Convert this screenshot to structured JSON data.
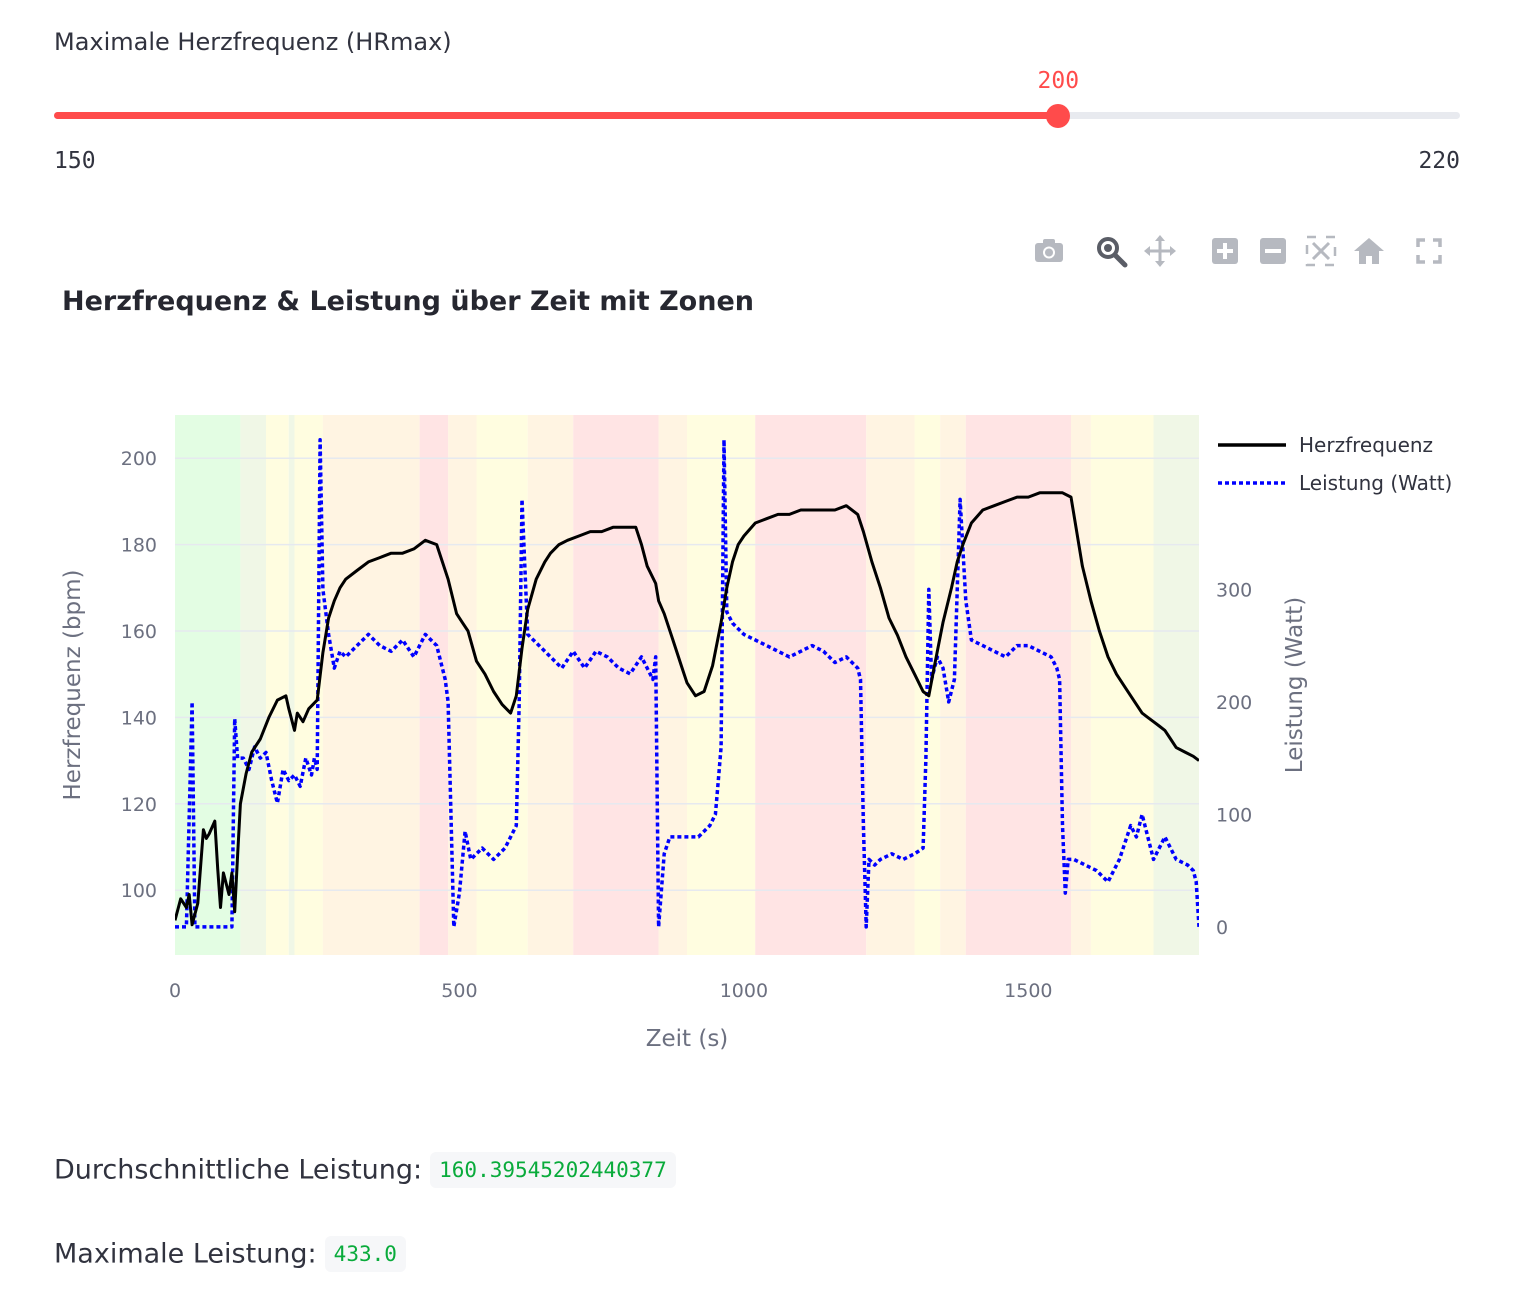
{
  "slider": {
    "label": "Maximale Herzfrequenz (HRmax)",
    "value": 200,
    "min": 150,
    "max": 220,
    "value_label": "200",
    "min_label": "150",
    "max_label": "220",
    "accent_color": "#ff4b4b"
  },
  "modebar": {
    "icons": [
      "camera-icon",
      "zoom-icon",
      "pan-icon",
      "zoom-in-icon",
      "zoom-out-icon",
      "autoscale-icon",
      "reset-axes-icon",
      "fullscreen-icon"
    ]
  },
  "metrics": {
    "avg_label": "Durchschnittliche Leistung:",
    "avg_value": "160.39545202440377",
    "max_label": "Maximale Leistung:",
    "max_value": "433.0"
  },
  "chart_data": {
    "type": "line",
    "title": "Herzfrequenz & Leistung über Zeit mit Zonen",
    "xlabel": "Zeit (s)",
    "ylabel": "Herzfrequenz (bpm)",
    "y2label": "Leistung (Watt)",
    "xlim": [
      0,
      1800
    ],
    "ylim": [
      85,
      210
    ],
    "y2lim": [
      -25,
      455
    ],
    "xticks": [
      0,
      500,
      1000,
      1500
    ],
    "yticks": [
      100,
      120,
      140,
      160,
      180,
      200
    ],
    "y2ticks": [
      0,
      100,
      200,
      300
    ],
    "grid": true,
    "legend_position": "top-right",
    "zone_colors": {
      "z1": "#e3fde3",
      "z2": "#fffde0",
      "z3": "#fff4e2",
      "z4": "#ffe4e4",
      "z5": "#f0f7e6"
    },
    "zones": [
      [
        0,
        115,
        "z1"
      ],
      [
        115,
        160,
        "z5"
      ],
      [
        160,
        200,
        "z2"
      ],
      [
        200,
        210,
        "z5"
      ],
      [
        210,
        260,
        "z2"
      ],
      [
        260,
        430,
        "z3"
      ],
      [
        430,
        480,
        "z4"
      ],
      [
        480,
        530,
        "z3"
      ],
      [
        530,
        620,
        "z2"
      ],
      [
        620,
        700,
        "z3"
      ],
      [
        700,
        850,
        "z4"
      ],
      [
        850,
        900,
        "z3"
      ],
      [
        900,
        1020,
        "z2"
      ],
      [
        1020,
        1215,
        "z4"
      ],
      [
        1215,
        1300,
        "z3"
      ],
      [
        1300,
        1345,
        "z2"
      ],
      [
        1345,
        1390,
        "z3"
      ],
      [
        1390,
        1575,
        "z4"
      ],
      [
        1575,
        1610,
        "z3"
      ],
      [
        1610,
        1720,
        "z2"
      ],
      [
        1720,
        1800,
        "z5"
      ]
    ],
    "series": [
      {
        "name": "Herzfrequenz",
        "axis": "y",
        "color": "#000000",
        "dash": "solid",
        "x": [
          0,
          10,
          20,
          25,
          30,
          40,
          50,
          55,
          60,
          70,
          75,
          80,
          85,
          95,
          100,
          105,
          110,
          115,
          125,
          135,
          150,
          165,
          180,
          195,
          200,
          210,
          215,
          225,
          235,
          250,
          260,
          270,
          280,
          290,
          300,
          320,
          340,
          360,
          380,
          400,
          420,
          440,
          460,
          480,
          495,
          505,
          515,
          530,
          545,
          560,
          575,
          590,
          600,
          610,
          620,
          635,
          650,
          660,
          675,
          690,
          710,
          730,
          750,
          770,
          790,
          810,
          820,
          830,
          845,
          850,
          860,
          875,
          890,
          900,
          915,
          930,
          945,
          960,
          970,
          980,
          990,
          1000,
          1020,
          1040,
          1060,
          1080,
          1100,
          1120,
          1140,
          1160,
          1180,
          1200,
          1210,
          1225,
          1240,
          1255,
          1270,
          1285,
          1300,
          1315,
          1325,
          1335,
          1350,
          1365,
          1375,
          1385,
          1400,
          1420,
          1440,
          1460,
          1480,
          1500,
          1520,
          1540,
          1560,
          1575,
          1585,
          1595,
          1610,
          1625,
          1640,
          1655,
          1670,
          1690,
          1700,
          1710,
          1720,
          1730,
          1740,
          1750,
          1760,
          1775,
          1790,
          1800
        ],
        "y": [
          93,
          98,
          96,
          99,
          92,
          97,
          114,
          112,
          113,
          116,
          105,
          96,
          104,
          99,
          104,
          95,
          108,
          120,
          127,
          132,
          135,
          140,
          144,
          145,
          142,
          137,
          141,
          139,
          142,
          144,
          155,
          163,
          167,
          170,
          172,
          174,
          176,
          177,
          178,
          178,
          179,
          181,
          180,
          172,
          164,
          162,
          160,
          153,
          150,
          146,
          143,
          141,
          145,
          156,
          165,
          172,
          176,
          178,
          180,
          181,
          182,
          183,
          183,
          184,
          184,
          184,
          180,
          175,
          171,
          167,
          164,
          158,
          152,
          148,
          145,
          146,
          152,
          162,
          170,
          176,
          180,
          182,
          185,
          186,
          187,
          187,
          188,
          188,
          188,
          188,
          189,
          187,
          183,
          176,
          170,
          163,
          159,
          154,
          150,
          146,
          145,
          152,
          162,
          170,
          176,
          180,
          185,
          188,
          189,
          190,
          191,
          191,
          192,
          192,
          192,
          191,
          183,
          175,
          167,
          160,
          154,
          150,
          147,
          143,
          141,
          140,
          139,
          138,
          137,
          135,
          133,
          132,
          131,
          130
        ]
      },
      {
        "name": "Leistung (Watt)",
        "axis": "y2",
        "color": "#0000ff",
        "dash": "dotted",
        "x": [
          0,
          20,
          30,
          35,
          40,
          50,
          60,
          80,
          100,
          105,
          110,
          120,
          130,
          140,
          150,
          160,
          170,
          180,
          190,
          200,
          210,
          220,
          230,
          240,
          245,
          250,
          255,
          260,
          270,
          280,
          290,
          300,
          320,
          340,
          360,
          380,
          400,
          420,
          440,
          460,
          475,
          480,
          490,
          500,
          510,
          520,
          540,
          560,
          580,
          600,
          605,
          610,
          620,
          640,
          660,
          680,
          700,
          720,
          740,
          760,
          780,
          800,
          820,
          840,
          845,
          850,
          860,
          870,
          880,
          900,
          920,
          940,
          950,
          955,
          960,
          965,
          970,
          980,
          1000,
          1020,
          1040,
          1060,
          1080,
          1100,
          1120,
          1140,
          1160,
          1180,
          1200,
          1205,
          1210,
          1215,
          1220,
          1230,
          1240,
          1260,
          1280,
          1300,
          1315,
          1320,
          1325,
          1330,
          1340,
          1350,
          1360,
          1370,
          1380,
          1390,
          1400,
          1420,
          1440,
          1460,
          1480,
          1500,
          1520,
          1540,
          1550,
          1555,
          1560,
          1565,
          1570,
          1580,
          1600,
          1620,
          1640,
          1660,
          1680,
          1690,
          1700,
          1720,
          1740,
          1760,
          1780,
          1790,
          1795,
          1800
        ],
        "y": [
          0,
          0,
          200,
          0,
          0,
          0,
          0,
          0,
          0,
          185,
          150,
          150,
          140,
          160,
          150,
          155,
          130,
          110,
          140,
          130,
          135,
          125,
          150,
          135,
          150,
          140,
          433,
          300,
          260,
          230,
          245,
          240,
          250,
          260,
          250,
          245,
          255,
          240,
          260,
          250,
          220,
          200,
          0,
          30,
          85,
          60,
          70,
          60,
          70,
          90,
          200,
          380,
          260,
          250,
          240,
          230,
          245,
          230,
          245,
          240,
          230,
          225,
          240,
          220,
          240,
          0,
          65,
          80,
          80,
          80,
          80,
          90,
          100,
          130,
          160,
          433,
          280,
          270,
          260,
          255,
          250,
          245,
          240,
          245,
          250,
          245,
          235,
          240,
          230,
          220,
          90,
          0,
          60,
          55,
          60,
          65,
          60,
          65,
          70,
          150,
          300,
          220,
          240,
          230,
          200,
          220,
          380,
          290,
          255,
          250,
          245,
          240,
          250,
          250,
          245,
          240,
          230,
          220,
          90,
          30,
          60,
          60,
          55,
          50,
          40,
          60,
          90,
          80,
          100,
          60,
          80,
          60,
          55,
          50,
          40,
          0
        ]
      }
    ]
  }
}
